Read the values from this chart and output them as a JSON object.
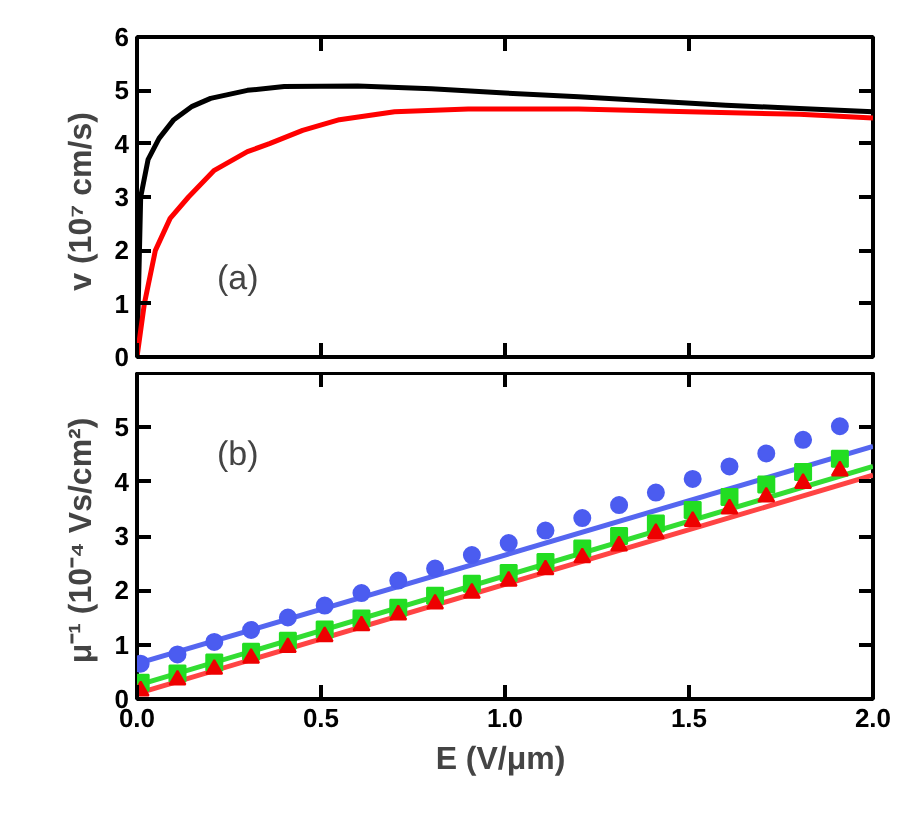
{
  "chart_data": [
    {
      "type": "line",
      "ylabel": "v  (10⁷ cm/s)",
      "annotations": [
        "(a)"
      ],
      "xlim": [
        0,
        2
      ],
      "xticks": [
        0,
        0.5,
        1,
        1.5,
        2
      ],
      "ylim": [
        0,
        6
      ],
      "yticks": [
        0,
        1,
        2,
        3,
        4,
        5,
        6
      ],
      "tick_labels": "y",
      "grid": false,
      "marker": "none",
      "line_style": "solid",
      "series": [
        {
          "color": "#000000",
          "x": [
            0,
            0.005,
            0.01,
            0.03,
            0.06,
            0.1,
            0.15,
            0.2,
            0.3,
            0.4,
            0.6,
            0.8,
            1.0,
            1.2,
            1.4,
            1.6,
            1.8,
            2.0
          ],
          "values": [
            0,
            1.5,
            3.0,
            3.7,
            4.1,
            4.45,
            4.7,
            4.85,
            5.0,
            5.07,
            5.08,
            5.03,
            4.95,
            4.88,
            4.8,
            4.72,
            4.66,
            4.6
          ]
        },
        {
          "color": "#ff0000",
          "x": [
            0,
            0.02,
            0.05,
            0.09,
            0.14,
            0.21,
            0.3,
            0.36,
            0.45,
            0.55,
            0.7,
            0.9,
            1.2,
            1.5,
            1.8,
            2.0
          ],
          "values": [
            0,
            1.0,
            2.0,
            2.6,
            3.0,
            3.5,
            3.85,
            4.0,
            4.25,
            4.45,
            4.6,
            4.65,
            4.65,
            4.6,
            4.55,
            4.48
          ]
        }
      ]
    },
    {
      "type": "scatter",
      "xlabel": "E  (V/μm)",
      "ylabel": "μ⁻¹  (10⁻⁴ Vs/cm²)",
      "annotations": [
        "(b)"
      ],
      "xlim": [
        0,
        2
      ],
      "xticks": [
        {
          "value": 0,
          "label": "0.0"
        },
        0.5,
        {
          "value": 1,
          "label": "1.0"
        },
        1.5,
        {
          "value": 2,
          "label": "2.0"
        }
      ],
      "ylim": [
        0,
        6
      ],
      "yticks": [
        0,
        1,
        2,
        3,
        4,
        5,
        {
          "value": 6,
          "label": null
        }
      ],
      "grid": false,
      "x": [
        0.01,
        0.11,
        0.21,
        0.31,
        0.41,
        0.51,
        0.61,
        0.71,
        0.81,
        0.91,
        1.01,
        1.11,
        1.21,
        1.31,
        1.41,
        1.51,
        1.61,
        1.71,
        1.81,
        1.91
      ],
      "series": [
        {
          "type": "scatter",
          "marker": "circle",
          "color": "#4b5cf0",
          "values": [
            0.65,
            0.82,
            1.05,
            1.27,
            1.5,
            1.72,
            1.95,
            2.18,
            2.4,
            2.65,
            2.87,
            3.1,
            3.33,
            3.57,
            3.8,
            4.05,
            4.28,
            4.52,
            4.77,
            5.02
          ]
        },
        {
          "type": "scatter",
          "marker": "square",
          "color": "#22dd22",
          "values": [
            0.3,
            0.47,
            0.67,
            0.87,
            1.07,
            1.28,
            1.48,
            1.68,
            1.9,
            2.12,
            2.32,
            2.52,
            2.77,
            3.0,
            3.23,
            3.48,
            3.72,
            3.95,
            4.18,
            4.42
          ]
        },
        {
          "type": "scatter",
          "marker": "triangle",
          "color": "#ee0000",
          "values": [
            0.15,
            0.35,
            0.55,
            0.75,
            0.95,
            1.15,
            1.35,
            1.55,
            1.75,
            1.95,
            2.17,
            2.38,
            2.6,
            2.82,
            3.05,
            3.27,
            3.5,
            3.72,
            3.97,
            4.2
          ]
        },
        {
          "type": "line",
          "marker": "none",
          "line_style": "solid",
          "color": "#5566f0",
          "x": [
            0,
            2
          ],
          "values": [
            0.65,
            4.65
          ]
        },
        {
          "type": "line",
          "marker": "none",
          "line_style": "solid",
          "color": "#33dd33",
          "x": [
            0,
            2
          ],
          "values": [
            0.25,
            4.28
          ]
        },
        {
          "type": "line",
          "marker": "none",
          "line_style": "solid",
          "color": "#ff4444",
          "x": [
            0,
            2
          ],
          "values": [
            0.1,
            4.12
          ]
        }
      ]
    }
  ]
}
